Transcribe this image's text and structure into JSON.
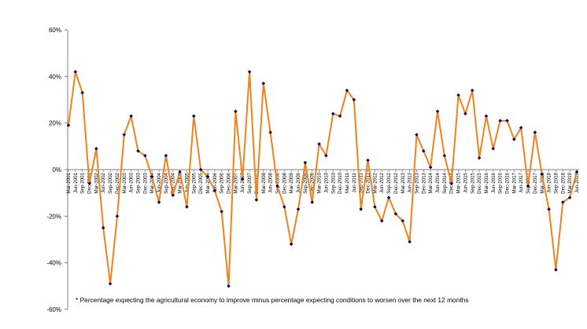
{
  "chart_data": {
    "type": "line",
    "title": "",
    "xlabel": "",
    "ylabel": "",
    "ylim": [
      -60,
      60
    ],
    "y_ticks": [
      -60,
      -40,
      -20,
      0,
      20,
      40,
      60
    ],
    "y_tick_labels": [
      "-60%",
      "-40%",
      "-20%",
      "0%",
      "20%",
      "40%",
      "60%"
    ],
    "grid": false,
    "legend": "none",
    "line_color": "#f0821e",
    "marker_color": "#0b0b5a",
    "axis_color": "#7f7f7f",
    "footnote": "* Percentage expecting the agricultural economy to improve minus percentage expecting conditions to worsen over the next 12 months",
    "x": [
      "Mar-2001",
      "Jun-2001",
      "Sep-2001",
      "Dec-2001",
      "Mar-2002",
      "Jun-2002",
      "Sep-2002",
      "Dec-2002",
      "Mar-2003",
      "Jun-2003",
      "Sep-2003",
      "Dec-2003",
      "Mar-2004",
      "Jun-2004",
      "Sep-2004",
      "Dec-2004",
      "Mar-2005",
      "Jun-2005",
      "Sep-2005",
      "Dec-2005",
      "Mar-2006",
      "Jun-2006",
      "Sep-2006",
      "Dec-2006",
      "Mar-2007",
      "Jun-2007",
      "Sep-2007",
      "Dec-2007",
      "Mar-2008",
      "Jun-2008",
      "Sep-2008",
      "Dec-2008",
      "Mar-2009",
      "Jun-2009",
      "Sep-2009",
      "Dec-2009",
      "Mar-2010",
      "Jun-2010",
      "Sep-2010",
      "Dec-2010",
      "Mar-2011",
      "Jun-2011",
      "Sep-2011",
      "Dec-2011",
      "Mar-2012",
      "Jun-2012",
      "Sep-2012",
      "Dec-2012",
      "Mar-2013",
      "Jun-2013",
      "Sep-2013",
      "Dec-2013",
      "Mar-2014",
      "Jun-2014",
      "Sep-2014",
      "Dec-2014",
      "Mar-2015",
      "Jun-2015",
      "Sep-2015",
      "Dec-2015",
      "Mar-2016",
      "Jun-2016",
      "Sep-2016",
      "Dec-2016",
      "Mar-2017",
      "Jun-2017",
      "Sep-2017",
      "Dec-2017",
      "Mar-2018",
      "Jun-2018",
      "Sep-2018",
      "Dec-2018",
      "Mar-2019",
      "Jun-2019"
    ],
    "x_tick_labels": [
      "Mar-2001",
      "Jun-2001",
      "Sep-2001",
      "Dec-2001",
      "Mar-2002",
      "Jun-2002",
      "Sep-2002",
      "Dec-2002",
      "Mar-2003",
      "Jun-2003",
      "Sep-2003",
      "Dec-2003",
      "Mar-2004",
      "Jun-2004",
      "Sep-2004",
      "Dec-2004",
      "Mar-2005",
      "Jun-2005",
      "Sep-2005",
      "Dec-2005",
      "Mar-2006",
      "Jun-2006",
      "Sep-2006",
      "Dec-2006",
      "Mar-2007",
      "Jun-2007",
      "Sep-2007",
      "Dec-2007",
      "Mar-2008",
      "Jun-2008",
      "Sep-2008",
      "Dec-2008",
      "Mar-2009",
      "Jun-2009",
      "Sep-2009",
      "Dec-2009",
      "Mar-2010",
      "Jun-2010",
      "Sep-2010",
      "Dec-2010",
      "Mar-2011",
      "Jun-2011",
      "Sep-2011",
      "Dec-2011",
      "Mar-2012",
      "Jun-2012",
      "Sep-2012",
      "Dec-2012",
      "Mar-2013",
      "Jun-2013",
      "Sep-2013",
      "Dec-2013",
      "Mar-2014",
      "Jun-2014",
      "Sep-2014",
      "Dec-2014",
      "Mar-2015",
      "Jun-2015",
      "Sep-2015",
      "Dec-2015",
      "Mar-2016",
      "Jun-2016",
      "Sep-2016",
      "Dec-2016",
      "Mar-2017",
      "Jun-2017",
      "Sep-2017",
      "Dec-2017",
      "Mar-2018",
      "Jun-2018",
      "Sep-2018",
      "Dec-2018",
      "Mar-2019",
      "Jun-2019"
    ],
    "series": [
      {
        "values": [
          19,
          42,
          33,
          -6,
          9,
          -25,
          -49,
          -20,
          15,
          23,
          8,
          6,
          -3,
          -14,
          6,
          -11,
          -1,
          -16,
          23,
          0,
          -3,
          -9,
          -18,
          -50,
          25,
          -4,
          42,
          -13,
          37,
          16,
          -7,
          -16,
          -32,
          -17,
          3,
          -14,
          11,
          6,
          24,
          23,
          34,
          30,
          -17,
          4,
          -16,
          -22,
          -12,
          -19,
          -22,
          -31,
          15,
          8,
          1,
          25,
          6,
          -6,
          32,
          24,
          34,
          5,
          23,
          9,
          21,
          21,
          13,
          18,
          -7,
          16,
          -2,
          -17,
          -43,
          -14,
          -12,
          -1
        ]
      }
    ]
  }
}
